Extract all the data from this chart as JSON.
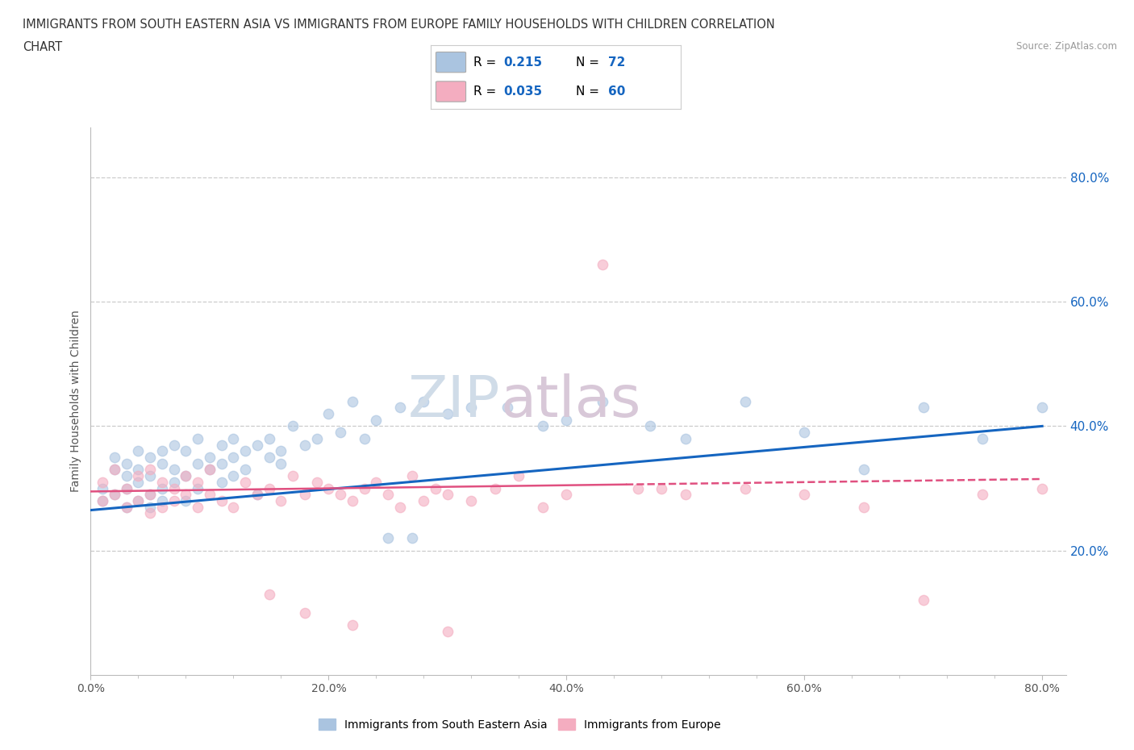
{
  "title_line1": "IMMIGRANTS FROM SOUTH EASTERN ASIA VS IMMIGRANTS FROM EUROPE FAMILY HOUSEHOLDS WITH CHILDREN CORRELATION",
  "title_line2": "CHART",
  "source": "Source: ZipAtlas.com",
  "ylabel": "Family Households with Children",
  "xlim": [
    0.0,
    0.82
  ],
  "ylim": [
    0.0,
    0.88
  ],
  "xtick_labels": [
    "0.0%",
    "",
    "",
    "",
    "",
    "20.0%",
    "",
    "",
    "",
    "",
    "40.0%",
    "",
    "",
    "",
    "",
    "60.0%",
    "",
    "",
    "",
    "",
    "80.0%"
  ],
  "xtick_values": [
    0.0,
    0.04,
    0.08,
    0.12,
    0.16,
    0.2,
    0.24,
    0.28,
    0.32,
    0.36,
    0.4,
    0.44,
    0.48,
    0.52,
    0.56,
    0.6,
    0.64,
    0.68,
    0.72,
    0.76,
    0.8
  ],
  "ytick_labels": [
    "20.0%",
    "40.0%",
    "60.0%",
    "80.0%"
  ],
  "ytick_values": [
    0.2,
    0.4,
    0.6,
    0.8
  ],
  "blue_color": "#aac4e0",
  "pink_color": "#f4adc0",
  "blue_line_color": "#1565c0",
  "pink_line_color": "#e05080",
  "watermark_color": "#d0dce8",
  "watermark_color2": "#d8c8d8",
  "background_color": "#ffffff",
  "grid_color": "#cccccc",
  "blue_scatter_x": [
    0.01,
    0.01,
    0.02,
    0.02,
    0.02,
    0.03,
    0.03,
    0.03,
    0.03,
    0.04,
    0.04,
    0.04,
    0.04,
    0.05,
    0.05,
    0.05,
    0.05,
    0.06,
    0.06,
    0.06,
    0.06,
    0.07,
    0.07,
    0.07,
    0.08,
    0.08,
    0.08,
    0.09,
    0.09,
    0.09,
    0.1,
    0.1,
    0.11,
    0.11,
    0.11,
    0.12,
    0.12,
    0.12,
    0.13,
    0.13,
    0.14,
    0.14,
    0.15,
    0.15,
    0.16,
    0.16,
    0.17,
    0.18,
    0.19,
    0.2,
    0.21,
    0.22,
    0.23,
    0.24,
    0.26,
    0.28,
    0.3,
    0.32,
    0.35,
    0.38,
    0.4,
    0.43,
    0.47,
    0.5,
    0.55,
    0.6,
    0.65,
    0.7,
    0.75,
    0.8,
    0.25,
    0.27
  ],
  "blue_scatter_y": [
    0.3,
    0.28,
    0.33,
    0.29,
    0.35,
    0.3,
    0.27,
    0.34,
    0.32,
    0.31,
    0.36,
    0.28,
    0.33,
    0.32,
    0.29,
    0.35,
    0.27,
    0.34,
    0.3,
    0.36,
    0.28,
    0.33,
    0.31,
    0.37,
    0.32,
    0.28,
    0.36,
    0.34,
    0.3,
    0.38,
    0.33,
    0.35,
    0.34,
    0.31,
    0.37,
    0.35,
    0.32,
    0.38,
    0.36,
    0.33,
    0.37,
    0.29,
    0.38,
    0.35,
    0.36,
    0.34,
    0.4,
    0.37,
    0.38,
    0.42,
    0.39,
    0.44,
    0.38,
    0.41,
    0.43,
    0.44,
    0.42,
    0.43,
    0.43,
    0.4,
    0.41,
    0.44,
    0.4,
    0.38,
    0.44,
    0.39,
    0.33,
    0.43,
    0.38,
    0.43,
    0.22,
    0.22
  ],
  "pink_scatter_x": [
    0.01,
    0.01,
    0.02,
    0.02,
    0.03,
    0.03,
    0.04,
    0.04,
    0.05,
    0.05,
    0.05,
    0.06,
    0.06,
    0.07,
    0.07,
    0.08,
    0.08,
    0.09,
    0.09,
    0.1,
    0.1,
    0.11,
    0.12,
    0.13,
    0.14,
    0.15,
    0.16,
    0.17,
    0.18,
    0.19,
    0.2,
    0.21,
    0.22,
    0.23,
    0.24,
    0.25,
    0.26,
    0.27,
    0.28,
    0.29,
    0.3,
    0.32,
    0.34,
    0.36,
    0.38,
    0.4,
    0.43,
    0.46,
    0.48,
    0.5,
    0.55,
    0.6,
    0.65,
    0.7,
    0.75,
    0.8,
    0.15,
    0.18,
    0.22,
    0.3
  ],
  "pink_scatter_y": [
    0.28,
    0.31,
    0.29,
    0.33,
    0.27,
    0.3,
    0.32,
    0.28,
    0.29,
    0.33,
    0.26,
    0.27,
    0.31,
    0.3,
    0.28,
    0.29,
    0.32,
    0.27,
    0.31,
    0.29,
    0.33,
    0.28,
    0.27,
    0.31,
    0.29,
    0.3,
    0.28,
    0.32,
    0.29,
    0.31,
    0.3,
    0.29,
    0.28,
    0.3,
    0.31,
    0.29,
    0.27,
    0.32,
    0.28,
    0.3,
    0.29,
    0.28,
    0.3,
    0.32,
    0.27,
    0.29,
    0.66,
    0.3,
    0.3,
    0.29,
    0.3,
    0.29,
    0.27,
    0.12,
    0.29,
    0.3,
    0.13,
    0.1,
    0.08,
    0.07
  ],
  "blue_trend_x": [
    0.0,
    0.8
  ],
  "blue_trend_y": [
    0.265,
    0.4
  ],
  "pink_trend_x": [
    0.0,
    0.8
  ],
  "pink_trend_y": [
    0.295,
    0.315
  ],
  "legend_blue_label": "R = 0.215   N = 72",
  "legend_pink_label": "R = 0.035   N = 60",
  "bottom_legend_labels": [
    "Immigrants from South Eastern Asia",
    "Immigrants from Europe"
  ]
}
